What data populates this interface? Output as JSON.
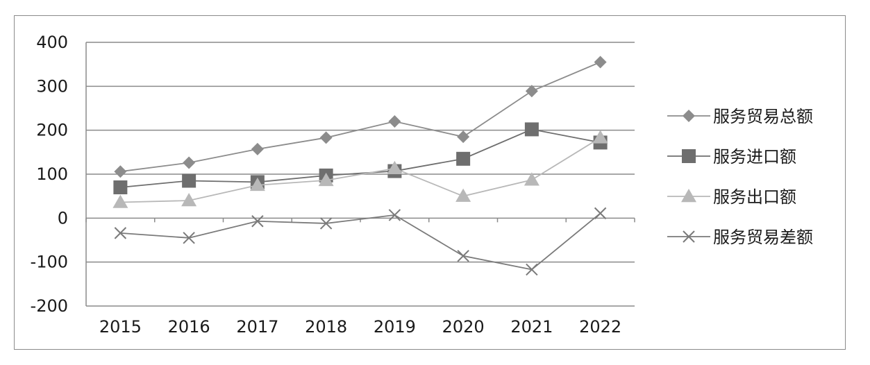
{
  "chart_data": {
    "type": "line",
    "title": "",
    "xlabel": "",
    "ylabel": "",
    "categories": [
      "2015",
      "2016",
      "2017",
      "2018",
      "2019",
      "2020",
      "2021",
      "2022"
    ],
    "ylim": [
      -200,
      400
    ],
    "y_ticks": [
      "400",
      "300",
      "200",
      "100",
      "0",
      "-100",
      "-200"
    ],
    "grid": "horizontal",
    "legend_position": "right",
    "series": [
      {
        "name": "服务贸易总额",
        "marker": "diamond",
        "color": "#8c8c8c",
        "values": [
          106,
          126,
          157,
          183,
          220,
          185,
          289,
          355
        ]
      },
      {
        "name": "服务进口额",
        "marker": "square",
        "color": "#6e6e6e",
        "values": [
          70,
          85,
          82,
          97,
          107,
          135,
          202,
          172
        ]
      },
      {
        "name": "服务出口额",
        "marker": "triangle",
        "color": "#b8b8b8",
        "values": [
          36,
          40,
          75,
          86,
          113,
          50,
          87,
          183
        ]
      },
      {
        "name": "服务贸易差额",
        "marker": "x",
        "color": "#7a7a7a",
        "values": [
          -34,
          -45,
          -7,
          -12,
          7,
          -86,
          -117,
          11
        ]
      }
    ]
  }
}
